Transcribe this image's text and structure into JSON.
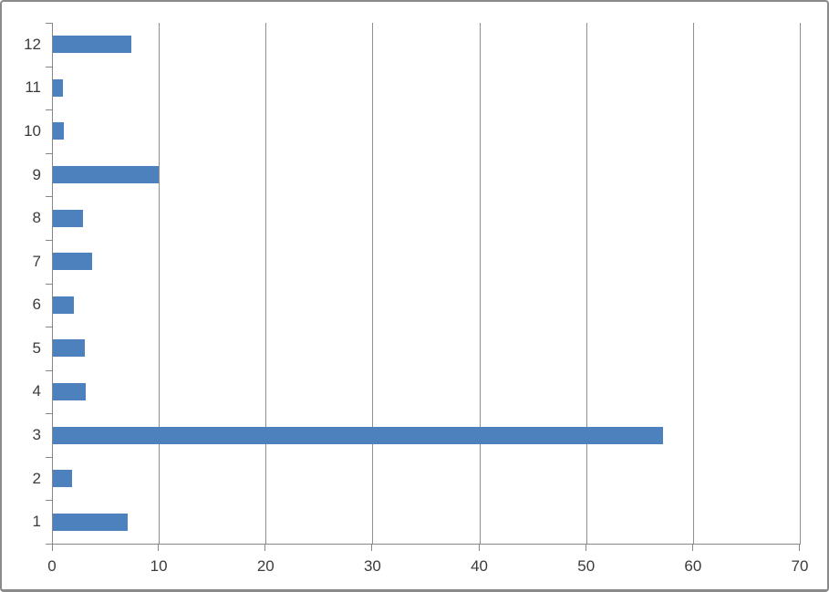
{
  "chart_data": {
    "type": "bar",
    "orientation": "horizontal",
    "title": "",
    "xlabel": "",
    "ylabel": "",
    "categories": [
      "1",
      "2",
      "3",
      "4",
      "5",
      "6",
      "7",
      "8",
      "9",
      "10",
      "11",
      "12"
    ],
    "values": [
      7.0,
      1.8,
      57.1,
      3.1,
      3.0,
      2.0,
      3.7,
      2.8,
      9.9,
      1.0,
      0.9,
      7.3
    ],
    "xlim": [
      0,
      70
    ],
    "x_ticks": [
      0,
      10,
      20,
      30,
      40,
      50,
      60,
      70
    ],
    "grid": true,
    "legend": false,
    "colors": {
      "bar": "#4d81bd",
      "gridline": "#8f8f8f",
      "axis": "#878787",
      "label": "#3b3b3b",
      "frame_border": "#8a8a8a",
      "background": "#ffffff"
    }
  }
}
